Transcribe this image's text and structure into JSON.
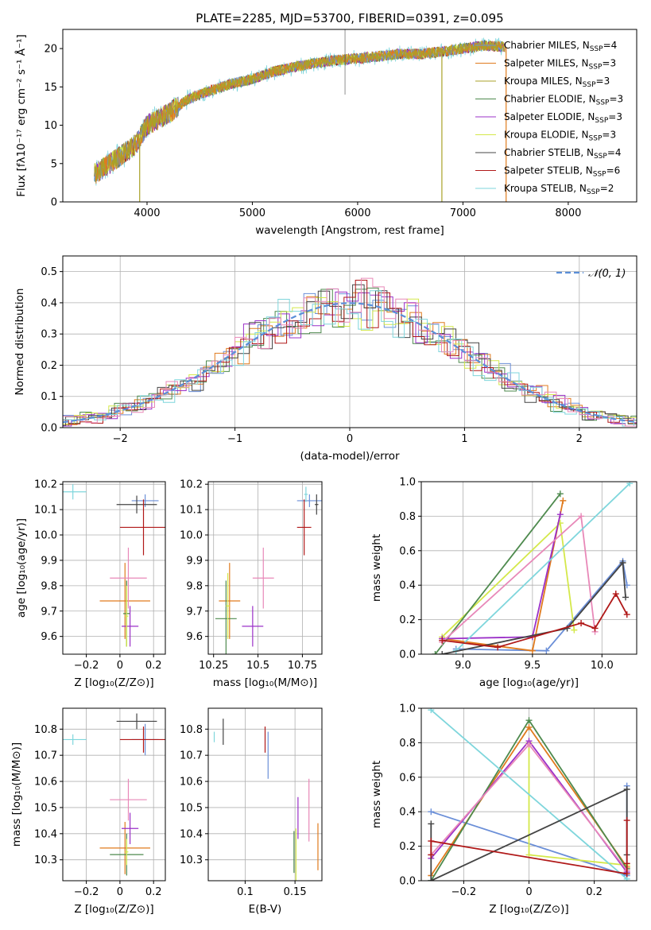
{
  "title": "PLATE=2285, MJD=53700, FIBERID=0391, z=0.095",
  "chart_data": [
    {
      "id": "spectrum",
      "type": "line",
      "xlabel": "wavelength [Angstrom, rest frame]",
      "ylabel": "Flux [fλ10⁻¹⁷ erg cm⁻² s⁻¹ Å⁻¹]",
      "xlim": [
        3200,
        8650
      ],
      "ylim": [
        0,
        22.5
      ],
      "xticks": [
        4000,
        5000,
        6000,
        7000,
        8000
      ],
      "yticks": [
        0,
        5,
        10,
        15,
        20
      ],
      "grid": false,
      "legend_position": "top-right",
      "spectrum_x": [
        3500,
        3700,
        3900,
        4000,
        4200,
        4400,
        4600,
        4800,
        5000,
        5200,
        5400,
        5600,
        5800,
        6000,
        6200,
        6400,
        6600,
        6800,
        7000,
        7200,
        7400
      ],
      "spectrum_y": [
        3.6,
        5.5,
        7.6,
        10.0,
        11.5,
        13.5,
        14.5,
        15.4,
        16.0,
        17.0,
        17.6,
        18.1,
        18.5,
        18.7,
        19.0,
        19.3,
        19.3,
        19.6,
        20.0,
        20.4,
        20.2
      ],
      "series": [
        {
          "name": "Chabrier MILES, N_SSP=4",
          "color": "#6b8fd8"
        },
        {
          "name": "Salpeter MILES, N_SSP=3",
          "color": "#e07b1e"
        },
        {
          "name": "Kroupa MILES, N_SSP=3",
          "color": "#a8a228"
        },
        {
          "name": "Chabrier ELODIE, N_SSP=3",
          "color": "#4e8a4e"
        },
        {
          "name": "Salpeter ELODIE, N_SSP=3",
          "color": "#9b30c8"
        },
        {
          "name": "Kroupa ELODIE, N_SSP=3",
          "color": "#d4e84a"
        },
        {
          "name": "Chabrier STELIB, N_SSP=4",
          "color": "#444444"
        },
        {
          "name": "Salpeter STELIB, N_SSP=6",
          "color": "#b01818"
        },
        {
          "name": "Kroupa STELIB, N_SSP=2",
          "color": "#7fd6dc"
        }
      ]
    },
    {
      "id": "residuals",
      "type": "bar",
      "xlabel": "(data-model)/error",
      "ylabel": "Normed distribution",
      "xlim": [
        -2.5,
        2.5
      ],
      "ylim": [
        0,
        0.55
      ],
      "xticks": [
        -2,
        -1,
        0,
        1,
        2
      ],
      "yticks": [
        0.0,
        0.1,
        0.2,
        0.3,
        0.4,
        0.5
      ],
      "grid": true,
      "legend_position": "top-right",
      "reference_curve": "𝒩(0, 1)",
      "histogram_bin_width": 0.1
    },
    {
      "id": "age_vs_Z",
      "type": "scatter",
      "xlabel": "Z [log₁₀(Z/Z⊙)]",
      "ylabel": "age  [log₁₀(age/yr)]",
      "xlim": [
        -0.34,
        0.27
      ],
      "ylim": [
        9.53,
        10.21
      ],
      "xticks": [
        -0.2,
        0.0,
        0.2
      ],
      "yticks": [
        9.6,
        9.7,
        9.8,
        9.9,
        10.0,
        10.1,
        10.2
      ],
      "grid": true,
      "points": [
        {
          "series": "Chabrier MILES",
          "x": 0.15,
          "y": 10.135,
          "xerr": 0.08,
          "yerr": 0.025
        },
        {
          "series": "Salpeter MILES",
          "x": 0.03,
          "y": 9.74,
          "xerr": 0.15,
          "yerr": 0.15
        },
        {
          "series": "Kroupa MILES",
          "x": 0.04,
          "y": 9.69,
          "xerr": 0.02,
          "yerr": 0.13
        },
        {
          "series": "Chabrier ELODIE",
          "x": 0.04,
          "y": 9.69,
          "xerr": 0.02,
          "yerr": 0.13
        },
        {
          "series": "Salpeter ELODIE",
          "x": 0.06,
          "y": 9.64,
          "xerr": 0.05,
          "yerr": 0.08
        },
        {
          "series": "Kroupa ELODIE",
          "x": 0.04,
          "y": 9.68,
          "xerr": 0.01,
          "yerr": 0.12
        },
        {
          "series": "Chabrier STELIB",
          "x": 0.1,
          "y": 10.12,
          "xerr": 0.12,
          "yerr": 0.035
        },
        {
          "series": "Salpeter STELIB",
          "x": 0.14,
          "y": 10.03,
          "xerr": 0.14,
          "yerr": 0.11
        },
        {
          "series": "Kroupa STELIB",
          "x": -0.28,
          "y": 10.17,
          "xerr": 0.08,
          "yerr": 0.03
        },
        {
          "series": "Salpeter ELODIE pink",
          "x": 0.05,
          "y": 9.83,
          "xerr": 0.11,
          "yerr": 0.12
        }
      ]
    },
    {
      "id": "age_vs_mass",
      "type": "scatter",
      "xlabel": "mass [log₁₀(M/M⊙)]",
      "ylabel": "",
      "xlim": [
        10.22,
        10.86
      ],
      "ylim": [
        9.53,
        10.21
      ],
      "xticks": [
        10.25,
        10.5,
        10.75
      ],
      "yticks": [
        9.6,
        9.7,
        9.8,
        9.9,
        10.0,
        10.1,
        10.2
      ],
      "grid": true,
      "points": [
        {
          "series": "Chabrier MILES",
          "x": 10.79,
          "y": 10.135,
          "xerr": 0.07,
          "yerr": 0.025
        },
        {
          "series": "Salpeter MILES",
          "x": 10.34,
          "y": 9.74,
          "xerr": 0.06,
          "yerr": 0.15
        },
        {
          "series": "Chabrier ELODIE",
          "x": 10.32,
          "y": 9.67,
          "xerr": 0.06,
          "yerr": 0.15
        },
        {
          "series": "Kroupa ELODIE",
          "x": 10.33,
          "y": 9.72,
          "xerr": 0.01,
          "yerr": 0.13
        },
        {
          "series": "Salpeter ELODIE",
          "x": 10.47,
          "y": 9.64,
          "xerr": 0.06,
          "yerr": 0.08
        },
        {
          "series": "Chabrier STELIB",
          "x": 10.83,
          "y": 10.12,
          "xerr": 0.01,
          "yerr": 0.04
        },
        {
          "series": "Salpeter STELIB",
          "x": 10.76,
          "y": 10.03,
          "xerr": 0.04,
          "yerr": 0.11
        },
        {
          "series": "Kroupa STELIB",
          "x": 10.77,
          "y": 10.16,
          "xerr": 0.01,
          "yerr": 0.03
        },
        {
          "series": "Salpeter ELODIE pink",
          "x": 10.53,
          "y": 9.83,
          "xerr": 0.06,
          "yerr": 0.12
        }
      ]
    },
    {
      "id": "weight_vs_age",
      "type": "line",
      "xlabel": "age  [log₁₀(age/yr)]",
      "ylabel": "mass weight",
      "xlim": [
        8.7,
        10.25
      ],
      "ylim": [
        0,
        1.0
      ],
      "xticks": [
        9.0,
        9.5,
        10.0
      ],
      "yticks": [
        0.0,
        0.2,
        0.4,
        0.6,
        0.8,
        1.0
      ],
      "grid": true,
      "series": [
        {
          "name": "Chabrier MILES",
          "x": [
            8.95,
            9.6,
            10.15,
            10.18
          ],
          "y": [
            0.03,
            0.02,
            0.54,
            0.4
          ]
        },
        {
          "name": "Salpeter MILES",
          "x": [
            8.85,
            9.5,
            9.72
          ],
          "y": [
            0.09,
            0.02,
            0.89
          ]
        },
        {
          "name": "Kroupa ELODIE",
          "x": [
            8.85,
            9.7,
            9.8
          ],
          "y": [
            0.1,
            0.76,
            0.14
          ]
        },
        {
          "name": "Chabrier ELODIE",
          "x": [
            8.8,
            9.7
          ],
          "y": [
            0.0,
            0.93
          ]
        },
        {
          "name": "Salpeter ELODIE",
          "x": [
            8.85,
            9.5,
            9.7
          ],
          "y": [
            0.09,
            0.1,
            0.81
          ]
        },
        {
          "name": "Salpeter ELODIE pink",
          "x": [
            8.85,
            9.85,
            9.95
          ],
          "y": [
            0.07,
            0.8,
            0.13
          ]
        },
        {
          "name": "Kroupa STELIB",
          "x": [
            8.95,
            10.2
          ],
          "y": [
            0.02,
            0.99
          ]
        },
        {
          "name": "Chabrier STELIB",
          "x": [
            8.85,
            9.75,
            10.15,
            10.17
          ],
          "y": [
            0.0,
            0.15,
            0.53,
            0.33
          ]
        },
        {
          "name": "Salpeter STELIB",
          "x": [
            8.85,
            9.25,
            9.85,
            9.95,
            10.1,
            10.18
          ],
          "y": [
            0.08,
            0.04,
            0.18,
            0.15,
            0.35,
            0.23
          ]
        }
      ]
    },
    {
      "id": "mass_vs_Z",
      "type": "scatter",
      "xlabel": "Z [log₁₀(Z/Z⊙)]",
      "ylabel": "mass [log₁₀(M/M⊙)]",
      "xlim": [
        -0.34,
        0.27
      ],
      "ylim": [
        10.22,
        10.88
      ],
      "xticks": [
        -0.2,
        0.0,
        0.2
      ],
      "yticks": [
        10.3,
        10.4,
        10.5,
        10.6,
        10.7,
        10.8
      ],
      "grid": true,
      "points": [
        {
          "series": "Chabrier MILES",
          "x": 0.15,
          "y": 10.76,
          "xerr": 0.08,
          "yerr": 0.06
        },
        {
          "series": "Salpeter MILES",
          "x": 0.03,
          "y": 10.345,
          "xerr": 0.15,
          "yerr": 0.1
        },
        {
          "series": "Chabrier ELODIE",
          "x": 0.04,
          "y": 10.32,
          "xerr": 0.1,
          "yerr": 0.08
        },
        {
          "series": "Kroupa ELODIE",
          "x": 0.04,
          "y": 10.33,
          "xerr": 0.01,
          "yerr": 0.05
        },
        {
          "series": "Salpeter ELODIE",
          "x": 0.06,
          "y": 10.42,
          "xerr": 0.05,
          "yerr": 0.06
        },
        {
          "series": "Chabrier STELIB",
          "x": 0.1,
          "y": 10.83,
          "xerr": 0.12,
          "yerr": 0.03
        },
        {
          "series": "Salpeter STELIB",
          "x": 0.14,
          "y": 10.76,
          "xerr": 0.14,
          "yerr": 0.05
        },
        {
          "series": "Kroupa STELIB",
          "x": -0.28,
          "y": 10.76,
          "xerr": 0.08,
          "yerr": 0.02
        },
        {
          "series": "Salpeter ELODIE pink",
          "x": 0.05,
          "y": 10.53,
          "xerr": 0.11,
          "yerr": 0.08
        }
      ]
    },
    {
      "id": "mass_vs_EBV",
      "type": "scatter",
      "xlabel": "E(B-V)",
      "ylabel": "",
      "xlim": [
        0.063,
        0.177
      ],
      "ylim": [
        10.22,
        10.88
      ],
      "xticks": [
        0.1,
        0.15
      ],
      "yticks": [
        10.3,
        10.4,
        10.5,
        10.6,
        10.7,
        10.8
      ],
      "grid": true,
      "points": [
        {
          "series": "Chabrier MILES",
          "x": 0.123,
          "y": 10.7,
          "yerr": 0.09
        },
        {
          "series": "Salpeter MILES",
          "x": 0.173,
          "y": 10.35,
          "yerr": 0.09
        },
        {
          "series": "Chabrier ELODIE",
          "x": 0.149,
          "y": 10.33,
          "yerr": 0.08
        },
        {
          "series": "Kroupa ELODIE",
          "x": 0.151,
          "y": 10.32,
          "yerr": 0.1
        },
        {
          "series": "Salpeter ELODIE",
          "x": 0.153,
          "y": 10.46,
          "yerr": 0.08
        },
        {
          "series": "Chabrier STELIB",
          "x": 0.078,
          "y": 10.79,
          "yerr": 0.05
        },
        {
          "series": "Salpeter STELIB",
          "x": 0.12,
          "y": 10.76,
          "yerr": 0.05
        },
        {
          "series": "Kroupa STELIB",
          "x": 0.069,
          "y": 10.77,
          "yerr": 0.02
        },
        {
          "series": "Salpeter ELODIE pink",
          "x": 0.164,
          "y": 10.49,
          "yerr": 0.12
        }
      ]
    },
    {
      "id": "weight_vs_Z",
      "type": "line",
      "xlabel": "Z [log₁₀(Z/Z⊙)]",
      "ylabel": "mass weight",
      "xlim": [
        -0.33,
        0.33
      ],
      "ylim": [
        0,
        1.0
      ],
      "xticks": [
        -0.2,
        0.0,
        0.2
      ],
      "yticks": [
        0.0,
        0.2,
        0.4,
        0.6,
        0.8,
        1.0
      ],
      "grid": true,
      "series": [
        {
          "name": "Chabrier MILES",
          "x": [
            -0.3,
            0.3,
            0.3
          ],
          "y": [
            0.4,
            0.03,
            0.55
          ]
        },
        {
          "name": "Salpeter MILES",
          "x": [
            -0.3,
            0.0,
            0.3
          ],
          "y": [
            0.03,
            0.89,
            0.08
          ]
        },
        {
          "name": "Kroupa ELODIE",
          "x": [
            0.0,
            0.0,
            0.3
          ],
          "y": [
            0.8,
            0.15,
            0.09
          ]
        },
        {
          "name": "Chabrier ELODIE",
          "x": [
            -0.3,
            0.0,
            0.3
          ],
          "y": [
            0.0,
            0.93,
            0.07
          ]
        },
        {
          "name": "Salpeter ELODIE",
          "x": [
            -0.3,
            0.0,
            0.3
          ],
          "y": [
            0.13,
            0.81,
            0.05
          ]
        },
        {
          "name": "Salpeter ELODIE pink",
          "x": [
            -0.3,
            0.0,
            0.3
          ],
          "y": [
            0.15,
            0.79,
            0.06
          ]
        },
        {
          "name": "Kroupa STELIB",
          "x": [
            -0.3,
            0.3
          ],
          "y": [
            0.99,
            0.01
          ]
        },
        {
          "name": "Chabrier STELIB",
          "x": [
            -0.3,
            -0.3,
            0.3,
            0.3
          ],
          "y": [
            0.33,
            0.0,
            0.53,
            0.15
          ]
        },
        {
          "name": "Salpeter STELIB",
          "x": [
            -0.3,
            -0.3,
            0.3,
            0.3,
            0.3
          ],
          "y": [
            0.15,
            0.23,
            0.04,
            0.35,
            0.1
          ]
        }
      ]
    }
  ],
  "colors": {
    "Chabrier MILES": "#6b8fd8",
    "Salpeter MILES": "#e07b1e",
    "Kroupa MILES": "#a8a228",
    "Chabrier ELODIE": "#4e8a4e",
    "Salpeter ELODIE": "#9b30c8",
    "Kroupa ELODIE": "#d4e84a",
    "Chabrier STELIB": "#444444",
    "Salpeter STELIB": "#b01818",
    "Kroupa STELIB": "#7fd6dc",
    "Salpeter ELODIE pink": "#e888b8",
    "reference": "#5a8fd8"
  }
}
